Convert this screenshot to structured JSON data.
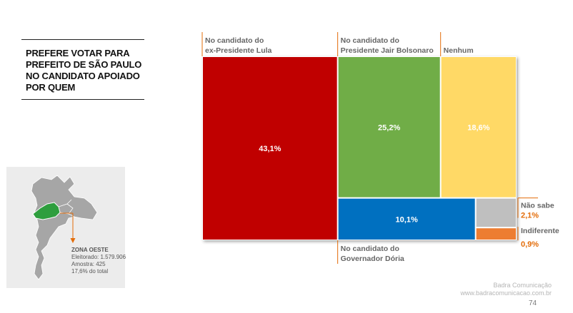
{
  "title": "PREFERE VOTAR PARA PREFEITO DE SÃO PAULO NO CANDIDATO APOIADO POR QUEM",
  "zone": {
    "name": "ZONA OESTE",
    "eleitorado": "Eleitorado: 1.579.906",
    "amostra": "Amostra: 425",
    "total": "17,6% do total"
  },
  "footer": {
    "company": "Badra Comunicação",
    "url": "www.badracomunicacao.com.br"
  },
  "page_number": "74",
  "colors": {
    "lula": "#c00000",
    "bolsonaro": "#70ad47",
    "nenhum": "#ffd966",
    "doria": "#0070c0",
    "nao_sabe": "#bfbfbf",
    "indiferente": "#ed7d31",
    "category_label": "#666666",
    "outside_value": "#e36c09",
    "map_gray": "#a6a6a6",
    "map_zone": "#2e9e3e"
  },
  "chart_data": {
    "type": "treemap",
    "unit": "%",
    "items": [
      {
        "id": "lula",
        "label_lines": [
          "No candidato do",
          "ex-Presidente Lula"
        ],
        "value": 43.1,
        "value_label": "43,1%"
      },
      {
        "id": "bolsonaro",
        "label_lines": [
          "No candidato do",
          "Presidente Jair Bolsonaro"
        ],
        "value": 25.2,
        "value_label": "25,2%"
      },
      {
        "id": "nenhum",
        "label_lines": [
          "Nenhum"
        ],
        "value": 18.6,
        "value_label": "18,6%"
      },
      {
        "id": "doria",
        "label_lines": [
          "No candidato do",
          "Governador Dória"
        ],
        "value": 10.1,
        "value_label": "10,1%"
      },
      {
        "id": "nao_sabe",
        "label_lines": [
          "Não sabe"
        ],
        "value": 2.1,
        "value_label": "2,1%"
      },
      {
        "id": "indiferente",
        "label_lines": [
          "Indiferente"
        ],
        "value": 0.9,
        "value_label": "0,9%"
      }
    ]
  }
}
